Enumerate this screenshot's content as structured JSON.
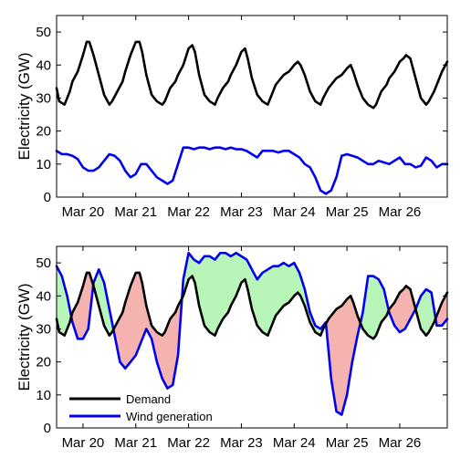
{
  "chart_data": [
    {
      "type": "line",
      "ylabel": "Electricity (GW)",
      "ylim": [
        0,
        55
      ],
      "yticks": [
        0,
        10,
        20,
        30,
        40,
        50
      ],
      "xlim": [
        0,
        7.4
      ],
      "xticks": [
        {
          "x": 0.5,
          "label": "Mar 20"
        },
        {
          "x": 1.5,
          "label": "Mar 21"
        },
        {
          "x": 2.5,
          "label": "Mar 22"
        },
        {
          "x": 3.5,
          "label": "Mar 23"
        },
        {
          "x": 4.5,
          "label": "Mar 24"
        },
        {
          "x": 5.5,
          "label": "Mar 25"
        },
        {
          "x": 6.5,
          "label": "Mar 26"
        }
      ],
      "grid": false,
      "series": [
        {
          "name": "Demand",
          "color": "#000000",
          "x": [
            0.0,
            0.05,
            0.15,
            0.25,
            0.3,
            0.4,
            0.5,
            0.57,
            0.62,
            0.7,
            0.8,
            0.9,
            1.0,
            1.05,
            1.15,
            1.25,
            1.3,
            1.4,
            1.5,
            1.57,
            1.62,
            1.7,
            1.8,
            1.9,
            2.0,
            2.05,
            2.15,
            2.25,
            2.3,
            2.4,
            2.5,
            2.57,
            2.62,
            2.7,
            2.8,
            2.9,
            3.0,
            3.05,
            3.15,
            3.25,
            3.3,
            3.4,
            3.5,
            3.57,
            3.62,
            3.7,
            3.8,
            3.9,
            4.0,
            4.05,
            4.15,
            4.25,
            4.3,
            4.4,
            4.5,
            4.57,
            4.62,
            4.7,
            4.8,
            4.9,
            5.0,
            5.05,
            5.15,
            5.25,
            5.3,
            5.4,
            5.5,
            5.57,
            5.62,
            5.7,
            5.8,
            5.9,
            6.0,
            6.05,
            6.15,
            6.25,
            6.3,
            6.4,
            6.5,
            6.57,
            6.62,
            6.7,
            6.8,
            6.9,
            7.0,
            7.05,
            7.15,
            7.25,
            7.3,
            7.4
          ],
          "y": [
            33,
            29,
            28,
            32,
            35,
            38,
            43,
            47,
            47,
            43,
            37,
            31,
            28,
            29,
            32,
            35,
            38,
            43,
            47,
            47,
            44,
            37,
            31,
            29,
            28,
            29,
            33,
            35,
            37,
            40,
            45,
            46,
            44,
            37,
            31,
            29,
            28,
            30,
            33,
            35,
            37,
            40,
            44,
            45,
            42,
            36,
            31,
            29,
            28,
            30,
            34,
            36,
            37,
            38,
            40,
            41,
            40,
            37,
            32,
            29,
            28,
            30,
            33,
            35,
            36,
            37,
            39,
            40,
            38,
            34,
            30,
            28,
            27,
            28,
            32,
            34,
            36,
            38,
            41,
            42,
            43,
            42,
            36,
            30,
            28,
            29,
            32,
            36,
            38,
            41
          ]
        },
        {
          "name": "Wind generation",
          "color": "#0000ee",
          "x": [
            0.0,
            0.1,
            0.2,
            0.3,
            0.4,
            0.5,
            0.6,
            0.7,
            0.8,
            0.9,
            1.0,
            1.1,
            1.2,
            1.3,
            1.4,
            1.5,
            1.6,
            1.7,
            1.8,
            1.9,
            2.0,
            2.1,
            2.2,
            2.3,
            2.4,
            2.5,
            2.6,
            2.7,
            2.8,
            2.9,
            3.0,
            3.1,
            3.2,
            3.3,
            3.4,
            3.5,
            3.6,
            3.7,
            3.8,
            3.9,
            4.0,
            4.1,
            4.2,
            4.3,
            4.4,
            4.5,
            4.6,
            4.7,
            4.8,
            4.9,
            5.0,
            5.1,
            5.2,
            5.3,
            5.4,
            5.5,
            5.6,
            5.7,
            5.8,
            5.9,
            6.0,
            6.1,
            6.2,
            6.3,
            6.4,
            6.5,
            6.6,
            6.7,
            6.8,
            6.9,
            7.0,
            7.1,
            7.2,
            7.3,
            7.4
          ],
          "y": [
            14,
            13,
            13,
            12.5,
            11.5,
            9,
            8,
            8,
            9,
            11,
            13,
            12.5,
            11,
            8,
            6,
            7,
            10,
            10,
            8,
            6,
            5,
            4,
            5,
            10,
            15,
            15,
            14.5,
            15,
            15,
            14.5,
            15,
            15,
            14.5,
            15,
            14.5,
            14.5,
            14,
            13,
            12,
            14,
            14,
            14,
            13.5,
            14,
            14,
            13,
            12,
            10,
            9,
            6,
            2,
            1,
            2,
            6,
            12.5,
            13,
            12.5,
            12,
            11,
            10,
            10,
            11,
            10.5,
            10,
            11,
            12,
            10,
            10,
            9,
            9.5,
            12,
            11,
            9,
            10,
            10
          ]
        },
        {
          "color": "#000000",
          "x": [
            7.4
          ],
          "y": [
            41
          ]
        }
      ]
    },
    {
      "type": "area",
      "ylabel": "Electricity (GW)",
      "ylim": [
        0,
        55
      ],
      "yticks": [
        0,
        10,
        20,
        30,
        40,
        50
      ],
      "xlim": [
        0,
        7.4
      ],
      "xticks": [
        {
          "x": 0.5,
          "label": "Mar 20"
        },
        {
          "x": 1.5,
          "label": "Mar 21"
        },
        {
          "x": 2.5,
          "label": "Mar 22"
        },
        {
          "x": 3.5,
          "label": "Mar 23"
        },
        {
          "x": 4.5,
          "label": "Mar 24"
        },
        {
          "x": 5.5,
          "label": "Mar 25"
        },
        {
          "x": 6.5,
          "label": "Mar 26"
        }
      ],
      "grid": false,
      "legend": {
        "position": "bottom-left",
        "entries": [
          "Demand",
          "Wind generation"
        ]
      },
      "fill_colors": {
        "surplus": "#b8f5b8",
        "deficit": "#f5b3b0"
      },
      "series": [
        {
          "name": "Demand",
          "color": "#000000",
          "x": [
            0.0,
            0.05,
            0.15,
            0.25,
            0.3,
            0.4,
            0.5,
            0.57,
            0.62,
            0.7,
            0.8,
            0.9,
            1.0,
            1.05,
            1.15,
            1.25,
            1.3,
            1.4,
            1.5,
            1.57,
            1.62,
            1.7,
            1.8,
            1.9,
            2.0,
            2.05,
            2.15,
            2.25,
            2.3,
            2.4,
            2.5,
            2.57,
            2.62,
            2.7,
            2.8,
            2.9,
            3.0,
            3.05,
            3.15,
            3.25,
            3.3,
            3.4,
            3.5,
            3.57,
            3.62,
            3.7,
            3.8,
            3.9,
            4.0,
            4.05,
            4.15,
            4.25,
            4.3,
            4.4,
            4.5,
            4.57,
            4.62,
            4.7,
            4.8,
            4.9,
            5.0,
            5.05,
            5.15,
            5.25,
            5.3,
            5.4,
            5.5,
            5.57,
            5.62,
            5.7,
            5.8,
            5.9,
            6.0,
            6.05,
            6.15,
            6.25,
            6.3,
            6.4,
            6.5,
            6.57,
            6.62,
            6.7,
            6.8,
            6.9,
            7.0,
            7.05,
            7.15,
            7.25,
            7.3,
            7.4
          ],
          "y": [
            33,
            29,
            28,
            32,
            35,
            38,
            43,
            47,
            47,
            43,
            37,
            31,
            28,
            29,
            32,
            35,
            38,
            43,
            47,
            47,
            44,
            37,
            31,
            29,
            28,
            29,
            33,
            35,
            37,
            40,
            45,
            46,
            44,
            37,
            31,
            29,
            28,
            30,
            33,
            35,
            37,
            40,
            44,
            45,
            42,
            36,
            31,
            29,
            28,
            30,
            34,
            36,
            37,
            38,
            40,
            41,
            40,
            37,
            32,
            29,
            28,
            30,
            33,
            35,
            36,
            37,
            39,
            40,
            38,
            34,
            30,
            28,
            27,
            28,
            32,
            34,
            36,
            38,
            41,
            42,
            43,
            42,
            36,
            30,
            28,
            29,
            32,
            36,
            38,
            41
          ]
        },
        {
          "name": "Wind generation",
          "color": "#0000ee",
          "x": [
            0.0,
            0.1,
            0.2,
            0.3,
            0.4,
            0.5,
            0.6,
            0.7,
            0.8,
            0.9,
            1.0,
            1.1,
            1.2,
            1.3,
            1.4,
            1.5,
            1.6,
            1.7,
            1.8,
            1.9,
            2.0,
            2.1,
            2.2,
            2.3,
            2.4,
            2.5,
            2.6,
            2.7,
            2.8,
            2.9,
            3.0,
            3.1,
            3.2,
            3.3,
            3.4,
            3.5,
            3.6,
            3.7,
            3.8,
            3.9,
            4.0,
            4.1,
            4.2,
            4.3,
            4.4,
            4.5,
            4.6,
            4.7,
            4.8,
            4.9,
            5.0,
            5.1,
            5.2,
            5.3,
            5.4,
            5.5,
            5.6,
            5.7,
            5.8,
            5.9,
            6.0,
            6.1,
            6.2,
            6.3,
            6.4,
            6.5,
            6.6,
            6.7,
            6.8,
            6.9,
            7.0,
            7.1,
            7.2,
            7.3,
            7.4
          ],
          "y": [
            49,
            46,
            40,
            32,
            27,
            27,
            30,
            44,
            48,
            44,
            36,
            28,
            20,
            18,
            20,
            22,
            26,
            30,
            27,
            20,
            15,
            12,
            13,
            22,
            45,
            53,
            51,
            50,
            52,
            52,
            51,
            53,
            53,
            52,
            53,
            52,
            51,
            48,
            45,
            47,
            48,
            49,
            49,
            50,
            49,
            50,
            47,
            42,
            35,
            31,
            30,
            32,
            15,
            5,
            4,
            10,
            20,
            28,
            35,
            46,
            46,
            45,
            42,
            35,
            31,
            29,
            30,
            33,
            36,
            40,
            42,
            41,
            31,
            31,
            33
          ]
        }
      ]
    }
  ]
}
